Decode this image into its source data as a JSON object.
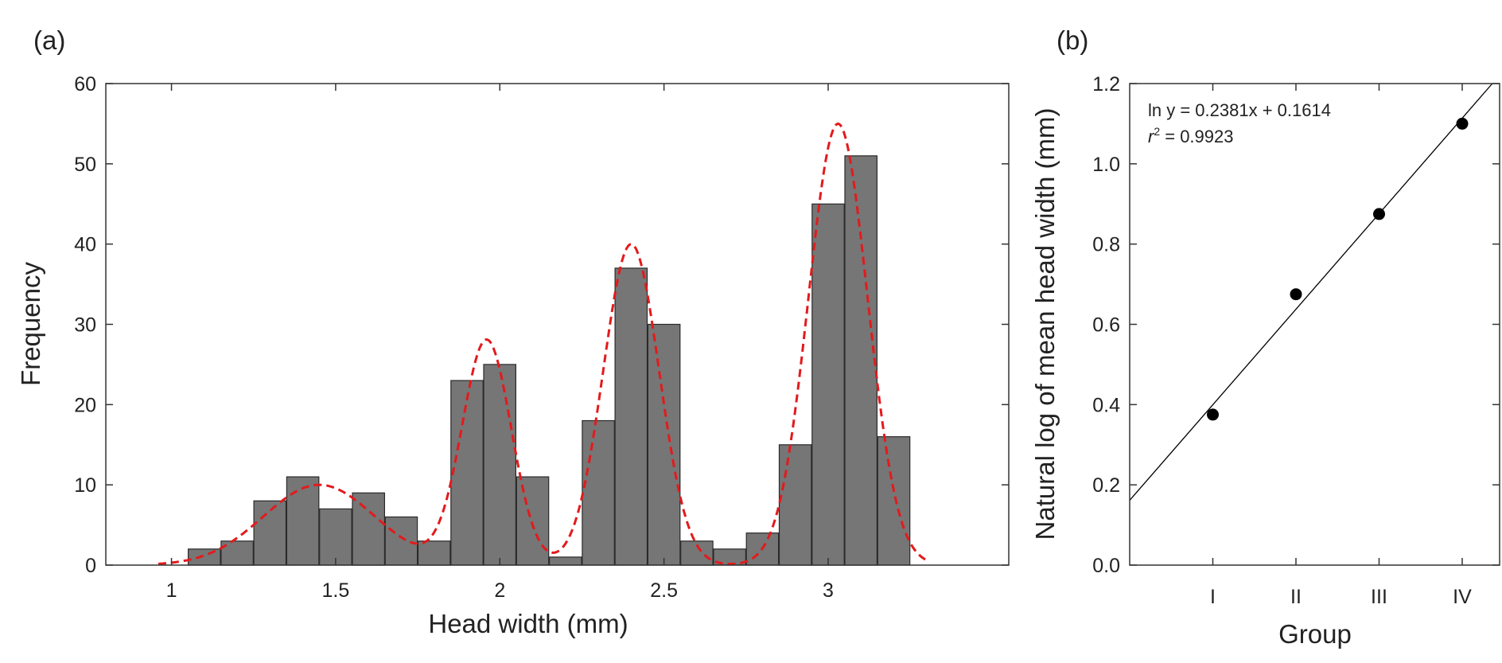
{
  "chart_data": [
    {
      "type": "bar",
      "panel_label": "(a)",
      "title": "",
      "xlabel": "Head width (mm)",
      "ylabel": "Frequency",
      "xlim": [
        0.8,
        3.55
      ],
      "ylim": [
        0,
        60
      ],
      "xticks": [
        1,
        1.5,
        2,
        2.5,
        3
      ],
      "xtick_labels": [
        "1",
        "1.5",
        "2",
        "2.5",
        "3"
      ],
      "yticks": [
        0,
        10,
        20,
        30,
        40,
        50,
        60
      ],
      "ytick_labels": [
        "0",
        "10",
        "20",
        "30",
        "40",
        "50",
        "60"
      ],
      "bin_width": 0.098,
      "bar_color": "#767676",
      "bins": [
        {
          "x": 1.1,
          "value": 2
        },
        {
          "x": 1.2,
          "value": 3
        },
        {
          "x": 1.3,
          "value": 8
        },
        {
          "x": 1.4,
          "value": 11
        },
        {
          "x": 1.5,
          "value": 7
        },
        {
          "x": 1.6,
          "value": 9
        },
        {
          "x": 1.7,
          "value": 6
        },
        {
          "x": 1.8,
          "value": 3
        },
        {
          "x": 1.9,
          "value": 23
        },
        {
          "x": 2.0,
          "value": 25
        },
        {
          "x": 2.1,
          "value": 11
        },
        {
          "x": 2.2,
          "value": 1
        },
        {
          "x": 2.3,
          "value": 18
        },
        {
          "x": 2.4,
          "value": 37
        },
        {
          "x": 2.5,
          "value": 30
        },
        {
          "x": 2.6,
          "value": 3
        },
        {
          "x": 2.7,
          "value": 2
        },
        {
          "x": 2.8,
          "value": 4
        },
        {
          "x": 2.9,
          "value": 15
        },
        {
          "x": 3.0,
          "value": 45
        },
        {
          "x": 3.1,
          "value": 51
        },
        {
          "x": 3.2,
          "value": 16
        }
      ],
      "fit_curves": {
        "style": "dashed",
        "color": "#e31a1c",
        "x_range": [
          0.96,
          3.3
        ],
        "components": [
          {
            "mean": 1.45,
            "sd": 0.17,
            "peak": 10
          },
          {
            "mean": 1.96,
            "sd": 0.075,
            "peak": 28
          },
          {
            "mean": 2.4,
            "sd": 0.085,
            "peak": 40
          },
          {
            "mean": 3.03,
            "sd": 0.09,
            "peak": 55
          }
        ]
      }
    },
    {
      "type": "scatter",
      "panel_label": "(b)",
      "title": "",
      "xlabel": "Group",
      "ylabel": "Natural log of mean head width (mm)",
      "xlim": [
        0,
        4.45
      ],
      "ylim": [
        0,
        1.2
      ],
      "categories": [
        "I",
        "II",
        "III",
        "IV"
      ],
      "x": [
        1,
        2,
        3,
        4
      ],
      "y": [
        0.375,
        0.675,
        0.875,
        1.1
      ],
      "yticks": [
        0,
        0.2,
        0.4,
        0.6,
        0.8,
        1.0,
        1.2
      ],
      "ytick_labels": [
        "0.0",
        "0.2",
        "0.4",
        "0.6",
        "0.8",
        "1.0",
        "1.2"
      ],
      "regression": {
        "slope": 0.2381,
        "intercept": 0.1614,
        "color": "#000000"
      },
      "annotation": {
        "equation": "ln y = 0.2381x + 0.1614",
        "r2_symbol": "r",
        "r2_exponent": "2",
        "r2_value": " = 0.9923"
      }
    }
  ]
}
